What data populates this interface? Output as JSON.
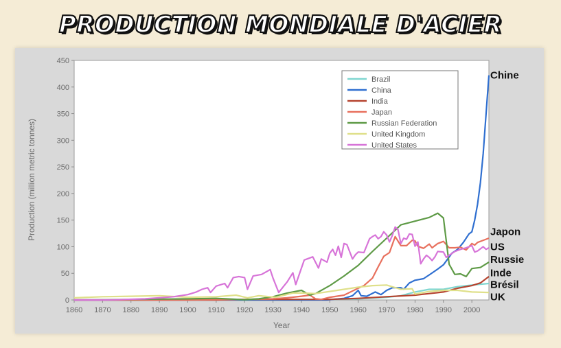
{
  "banner": {
    "title": "PRODUCTION MONDIALE D'ACIER"
  },
  "chart_data": {
    "type": "line",
    "xlabel": "Year",
    "ylabel": "Production (million metric tonnes)",
    "xlim": [
      1860,
      2006
    ],
    "ylim": [
      0,
      450
    ],
    "x_ticks": [
      1860,
      1870,
      1880,
      1890,
      1900,
      1910,
      1920,
      1930,
      1940,
      1950,
      1960,
      1970,
      1980,
      1990,
      2000
    ],
    "y_ticks": [
      0,
      50,
      100,
      150,
      200,
      250,
      300,
      350,
      400,
      450
    ],
    "legend_position": "top-right",
    "grid": false,
    "series": [
      {
        "name": "Brazil",
        "color": "#7fd6d0",
        "points": [
          [
            1860,
            0
          ],
          [
            1940,
            0
          ],
          [
            1950,
            1
          ],
          [
            1960,
            2
          ],
          [
            1970,
            5
          ],
          [
            1975,
            8
          ],
          [
            1980,
            15
          ],
          [
            1985,
            20
          ],
          [
            1990,
            20
          ],
          [
            1995,
            25
          ],
          [
            2000,
            28
          ],
          [
            2006,
            31
          ]
        ]
      },
      {
        "name": "China",
        "color": "#2f6fd0",
        "points": [
          [
            1860,
            0
          ],
          [
            1940,
            0
          ],
          [
            1949,
            0
          ],
          [
            1955,
            3
          ],
          [
            1958,
            8
          ],
          [
            1960,
            18
          ],
          [
            1961,
            8
          ],
          [
            1963,
            7
          ],
          [
            1966,
            15
          ],
          [
            1968,
            10
          ],
          [
            1970,
            18
          ],
          [
            1972,
            23
          ],
          [
            1975,
            23
          ],
          [
            1976,
            20
          ],
          [
            1978,
            32
          ],
          [
            1980,
            37
          ],
          [
            1983,
            40
          ],
          [
            1985,
            47
          ],
          [
            1988,
            58
          ],
          [
            1990,
            66
          ],
          [
            1993,
            88
          ],
          [
            1995,
            95
          ],
          [
            1997,
            108
          ],
          [
            1999,
            124
          ],
          [
            2000,
            128
          ],
          [
            2001,
            150
          ],
          [
            2002,
            180
          ],
          [
            2003,
            220
          ],
          [
            2004,
            275
          ],
          [
            2005,
            350
          ],
          [
            2006,
            422
          ]
        ]
      },
      {
        "name": "India",
        "color": "#b5432f",
        "points": [
          [
            1860,
            0
          ],
          [
            1910,
            0
          ],
          [
            1920,
            1
          ],
          [
            1940,
            1
          ],
          [
            1950,
            1
          ],
          [
            1960,
            3
          ],
          [
            1970,
            6
          ],
          [
            1980,
            9
          ],
          [
            1985,
            12
          ],
          [
            1990,
            15
          ],
          [
            1995,
            22
          ],
          [
            2000,
            27
          ],
          [
            2003,
            32
          ],
          [
            2006,
            44
          ]
        ]
      },
      {
        "name": "Japan",
        "color": "#e8705d",
        "points": [
          [
            1860,
            0
          ],
          [
            1900,
            0
          ],
          [
            1910,
            0.5
          ],
          [
            1920,
            1
          ],
          [
            1930,
            2
          ],
          [
            1935,
            4
          ],
          [
            1940,
            7
          ],
          [
            1943,
            9
          ],
          [
            1945,
            2
          ],
          [
            1947,
            1
          ],
          [
            1950,
            5
          ],
          [
            1955,
            9
          ],
          [
            1960,
            22
          ],
          [
            1962,
            27
          ],
          [
            1965,
            41
          ],
          [
            1967,
            62
          ],
          [
            1969,
            82
          ],
          [
            1971,
            89
          ],
          [
            1973,
            119
          ],
          [
            1975,
            102
          ],
          [
            1977,
            102
          ],
          [
            1979,
            112
          ],
          [
            1980,
            111
          ],
          [
            1981,
            101
          ],
          [
            1983,
            97
          ],
          [
            1985,
            105
          ],
          [
            1986,
            98
          ],
          [
            1988,
            106
          ],
          [
            1990,
            110
          ],
          [
            1992,
            98
          ],
          [
            1994,
            98
          ],
          [
            1996,
            99
          ],
          [
            1998,
            94
          ],
          [
            2000,
            106
          ],
          [
            2001,
            103
          ],
          [
            2002,
            108
          ],
          [
            2004,
            112
          ],
          [
            2006,
            116
          ]
        ]
      },
      {
        "name": "Russian Federation",
        "color": "#5e9a46",
        "points": [
          [
            1860,
            0
          ],
          [
            1900,
            2
          ],
          [
            1910,
            3
          ],
          [
            1920,
            0.5
          ],
          [
            1925,
            2
          ],
          [
            1930,
            6
          ],
          [
            1935,
            13
          ],
          [
            1940,
            18
          ],
          [
            1943,
            9
          ],
          [
            1945,
            12
          ],
          [
            1950,
            27
          ],
          [
            1955,
            45
          ],
          [
            1960,
            65
          ],
          [
            1965,
            91
          ],
          [
            1970,
            116
          ],
          [
            1975,
            141
          ],
          [
            1980,
            148
          ],
          [
            1985,
            155
          ],
          [
            1988,
            163
          ],
          [
            1990,
            154
          ],
          [
            1992,
            67
          ],
          [
            1994,
            48
          ],
          [
            1996,
            49
          ],
          [
            1998,
            44
          ],
          [
            2000,
            59
          ],
          [
            2003,
            61
          ],
          [
            2006,
            71
          ]
        ]
      },
      {
        "name": "United Kingdom",
        "color": "#dfe08a",
        "points": [
          [
            1860,
            4
          ],
          [
            1870,
            6
          ],
          [
            1880,
            7
          ],
          [
            1890,
            8
          ],
          [
            1900,
            5
          ],
          [
            1910,
            6
          ],
          [
            1917,
            9
          ],
          [
            1921,
            4
          ],
          [
            1925,
            8
          ],
          [
            1931,
            5
          ],
          [
            1937,
            13
          ],
          [
            1940,
            13
          ],
          [
            1945,
            12
          ],
          [
            1950,
            16
          ],
          [
            1955,
            20
          ],
          [
            1960,
            24
          ],
          [
            1965,
            27
          ],
          [
            1970,
            28
          ],
          [
            1975,
            20
          ],
          [
            1979,
            21
          ],
          [
            1980,
            11
          ],
          [
            1985,
            16
          ],
          [
            1990,
            18
          ],
          [
            1995,
            18
          ],
          [
            2000,
            15
          ],
          [
            2006,
            14
          ]
        ]
      },
      {
        "name": "United States",
        "color": "#d774d8",
        "points": [
          [
            1860,
            0
          ],
          [
            1870,
            0
          ],
          [
            1875,
            0.4
          ],
          [
            1880,
            1.3
          ],
          [
            1885,
            2
          ],
          [
            1890,
            4
          ],
          [
            1895,
            6
          ],
          [
            1900,
            10
          ],
          [
            1903,
            15
          ],
          [
            1905,
            20
          ],
          [
            1907,
            23
          ],
          [
            1908,
            14
          ],
          [
            1910,
            26
          ],
          [
            1913,
            31
          ],
          [
            1914,
            23
          ],
          [
            1916,
            42
          ],
          [
            1918,
            44
          ],
          [
            1920,
            42
          ],
          [
            1921,
            20
          ],
          [
            1923,
            45
          ],
          [
            1926,
            48
          ],
          [
            1929,
            57
          ],
          [
            1930,
            41
          ],
          [
            1932,
            14
          ],
          [
            1935,
            34
          ],
          [
            1937,
            51
          ],
          [
            1938,
            29
          ],
          [
            1940,
            60
          ],
          [
            1941,
            75
          ],
          [
            1944,
            81
          ],
          [
            1946,
            60
          ],
          [
            1947,
            77
          ],
          [
            1949,
            71
          ],
          [
            1950,
            88
          ],
          [
            1951,
            95
          ],
          [
            1952,
            84
          ],
          [
            1953,
            101
          ],
          [
            1954,
            80
          ],
          [
            1955,
            106
          ],
          [
            1956,
            104
          ],
          [
            1958,
            77
          ],
          [
            1959,
            85
          ],
          [
            1960,
            90
          ],
          [
            1962,
            89
          ],
          [
            1964,
            115
          ],
          [
            1965,
            119
          ],
          [
            1966,
            122
          ],
          [
            1967,
            115
          ],
          [
            1968,
            119
          ],
          [
            1969,
            128
          ],
          [
            1970,
            122
          ],
          [
            1971,
            109
          ],
          [
            1972,
            121
          ],
          [
            1973,
            137
          ],
          [
            1974,
            132
          ],
          [
            1975,
            106
          ],
          [
            1976,
            116
          ],
          [
            1977,
            114
          ],
          [
            1978,
            124
          ],
          [
            1979,
            123
          ],
          [
            1980,
            101
          ],
          [
            1981,
            109
          ],
          [
            1982,
            68
          ],
          [
            1983,
            77
          ],
          [
            1984,
            84
          ],
          [
            1985,
            80
          ],
          [
            1986,
            74
          ],
          [
            1987,
            81
          ],
          [
            1988,
            91
          ],
          [
            1990,
            90
          ],
          [
            1991,
            80
          ],
          [
            1992,
            84
          ],
          [
            1994,
            91
          ],
          [
            1996,
            95
          ],
          [
            1998,
            98
          ],
          [
            2000,
            102
          ],
          [
            2001,
            90
          ],
          [
            2002,
            92
          ],
          [
            2004,
            100
          ],
          [
            2005,
            95
          ],
          [
            2006,
            98
          ]
        ]
      }
    ],
    "callouts": [
      {
        "label": "Chine",
        "value": 422
      },
      {
        "label": "Japon",
        "value": 128
      },
      {
        "label": "US",
        "value": 100
      },
      {
        "label": "Russie",
        "value": 76
      },
      {
        "label": "Inde",
        "value": 51
      },
      {
        "label": "Brésil",
        "value": 29
      },
      {
        "label": "UK",
        "value": 6
      }
    ]
  }
}
